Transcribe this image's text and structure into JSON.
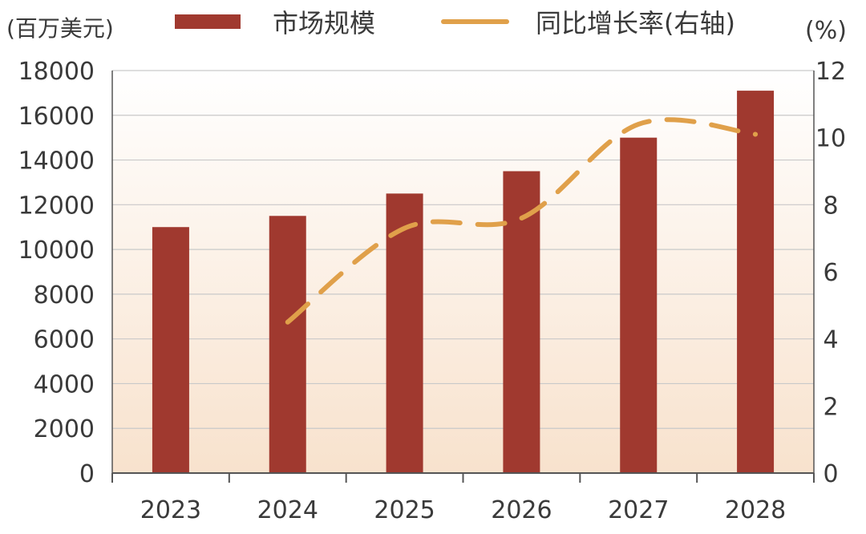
{
  "chart_data": {
    "type": "bar",
    "title": "",
    "left_unit": "(百万美元)",
    "right_unit": "(%)",
    "categories": [
      "2023",
      "2024",
      "2025",
      "2026",
      "2027",
      "2028"
    ],
    "series": [
      {
        "name": "市场规模",
        "type": "bar",
        "axis": "left",
        "values": [
          11000,
          11500,
          12500,
          13500,
          15000,
          17100
        ]
      },
      {
        "name": "同比增长率(右轴)",
        "type": "line",
        "axis": "right",
        "style": "dashed",
        "values": [
          null,
          4.5,
          7.3,
          7.6,
          10.4,
          10.1
        ]
      }
    ],
    "y_left": {
      "min": 0,
      "max": 18000,
      "ticks": [
        "0",
        "2000",
        "4000",
        "6000",
        "8000",
        "10000",
        "12000",
        "14000",
        "16000",
        "18000"
      ]
    },
    "y_right": {
      "min": 0,
      "max": 12,
      "ticks": [
        "0",
        "2",
        "4",
        "6",
        "8",
        "10",
        "12"
      ]
    },
    "grid": true,
    "legend_position": "top",
    "colors": {
      "bar": "#a0392f",
      "line": "#e0a04a",
      "grid": "#c9c9c9",
      "axis": "#555555",
      "bg_top": "#ffffff",
      "bg_bottom": "#f8e2cd"
    }
  }
}
